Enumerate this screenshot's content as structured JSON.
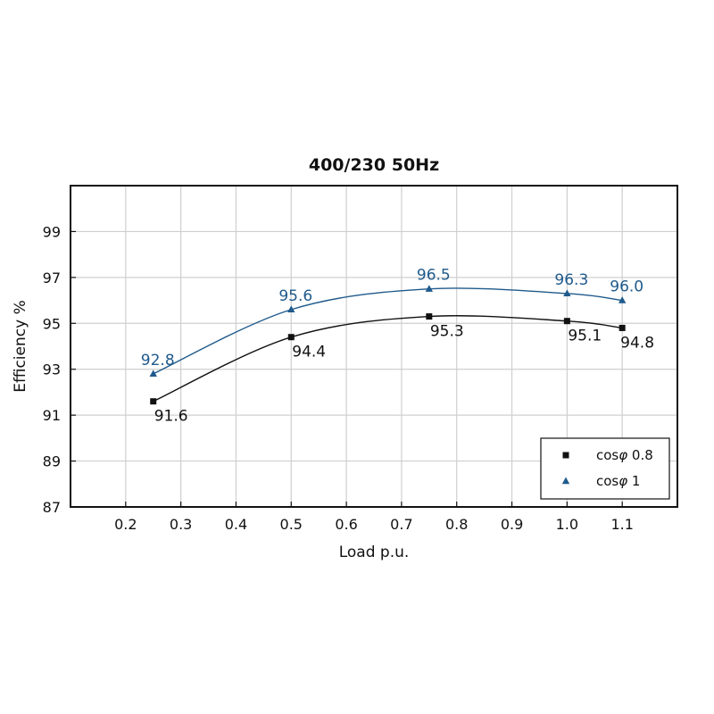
{
  "chart_data": {
    "type": "line",
    "title": "400/230 50Hz",
    "xlabel": "Load p.u.",
    "ylabel": "Efficiency %",
    "xlim": [
      0.1,
      1.2
    ],
    "ylim": [
      87,
      101
    ],
    "x_ticks": [
      0.2,
      0.3,
      0.4,
      0.5,
      0.6,
      0.7,
      0.8,
      0.9,
      1.0,
      1.1
    ],
    "x_tick_labels": [
      "0.2",
      "0.3",
      "0.4",
      "0.5",
      "0.6",
      "0.7",
      "0.8",
      "0.9",
      "1.0",
      "1.1"
    ],
    "y_ticks": [
      87,
      89,
      91,
      93,
      95,
      97,
      99
    ],
    "y_tick_labels": [
      "87",
      "89",
      "91",
      "93",
      "95",
      "97",
      "99"
    ],
    "grid": true,
    "legend_position": "bottom-right",
    "series": [
      {
        "name_prefix": "cos",
        "name_symbol": "φ",
        "name_suffix": " 0.8",
        "color": "#111111",
        "marker": "square",
        "x": [
          0.25,
          0.5,
          0.75,
          1.0,
          1.1
        ],
        "y": [
          91.6,
          94.4,
          95.3,
          95.1,
          94.8
        ],
        "labels": [
          "91.6",
          "94.4",
          "95.3",
          "95.1",
          "94.8"
        ],
        "label_position": "below"
      },
      {
        "name_prefix": "cos",
        "name_symbol": "φ",
        "name_suffix": " 1",
        "color": "#1f5a8c",
        "marker": "triangle",
        "x": [
          0.25,
          0.5,
          0.75,
          1.0,
          1.1
        ],
        "y": [
          92.8,
          95.6,
          96.5,
          96.3,
          96.0
        ],
        "labels": [
          "92.8",
          "95.6",
          "96.5",
          "96.3",
          "96.0"
        ],
        "label_position": "above"
      }
    ]
  }
}
